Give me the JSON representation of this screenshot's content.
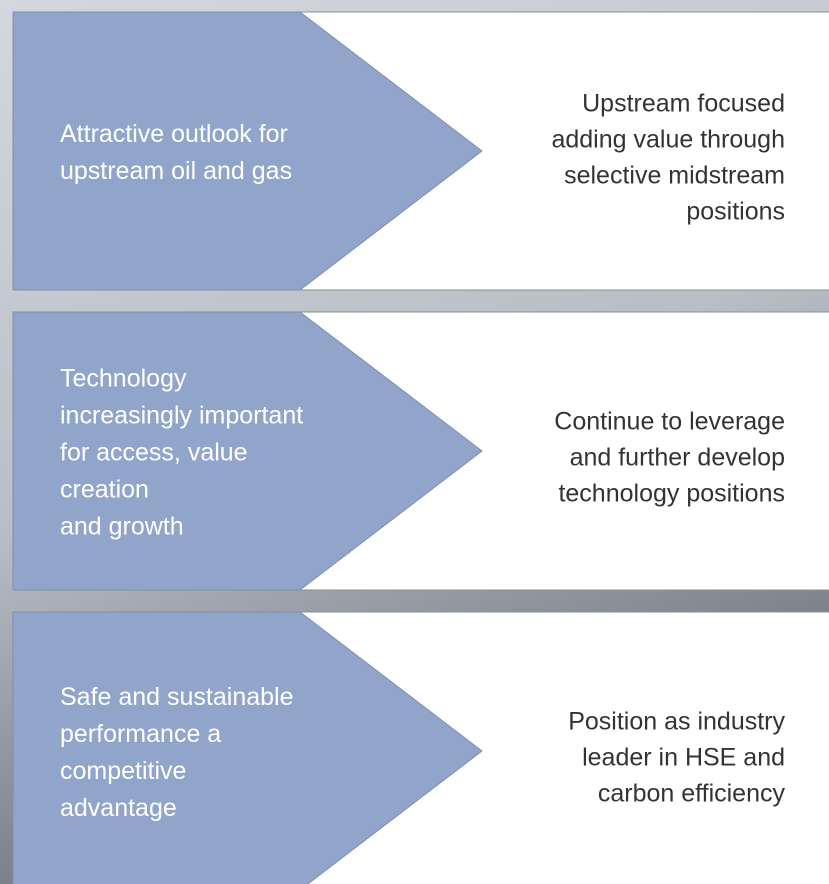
{
  "rows": [
    {
      "left": [
        "Attractive outlook for",
        "upstream oil and gas"
      ],
      "right": [
        "Upstream focused",
        "adding value through",
        "selective midstream",
        "positions"
      ]
    },
    {
      "left": [
        "Technology",
        "increasingly important",
        "for access, value",
        "creation",
        "and growth"
      ],
      "right": [
        "Continue to leverage",
        "and further develop",
        "technology positions"
      ]
    },
    {
      "left": [
        "Safe and sustainable",
        "performance a",
        "competitive",
        "advantage"
      ],
      "right": [
        "Position as industry",
        "leader in HSE and",
        "carbon efficiency"
      ]
    }
  ]
}
